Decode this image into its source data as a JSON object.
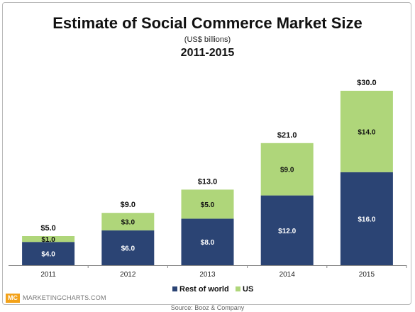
{
  "header": {
    "title": "Estimate of Social Commerce Market Size",
    "subtitle": "(US$ billions)",
    "period": "2011-2015"
  },
  "footer": {
    "brand": "MARKETINGCHARTS.COM",
    "logo_text": "MC",
    "source": "Source: Booz & Company"
  },
  "colors": {
    "rest_of_world": "#2b4474",
    "us": "#afd67a",
    "logo": "#f3a21a"
  },
  "chart_data": {
    "type": "bar",
    "stacked": true,
    "title": "Estimate of Social Commerce Market Size",
    "subtitle": "(US$ billions)",
    "categories": [
      "2011",
      "2012",
      "2013",
      "2014",
      "2015"
    ],
    "series": [
      {
        "name": "Rest of world",
        "values": [
          4.0,
          6.0,
          8.0,
          12.0,
          16.0
        ],
        "labels": [
          "$4.0",
          "$6.0",
          "$8.0",
          "$12.0",
          "$16.0"
        ]
      },
      {
        "name": "US",
        "values": [
          1.0,
          3.0,
          5.0,
          9.0,
          14.0
        ],
        "labels": [
          "$1.0",
          "$3.0",
          "$5.0",
          "$9.0",
          "$14.0"
        ]
      }
    ],
    "totals": [
      5.0,
      9.0,
      13.0,
      21.0,
      30.0
    ],
    "total_labels": [
      "$5.0",
      "$9.0",
      "$13.0",
      "$21.0",
      "$30.0"
    ],
    "ylim": [
      0,
      30
    ],
    "grid": false,
    "legend_position": "bottom"
  }
}
